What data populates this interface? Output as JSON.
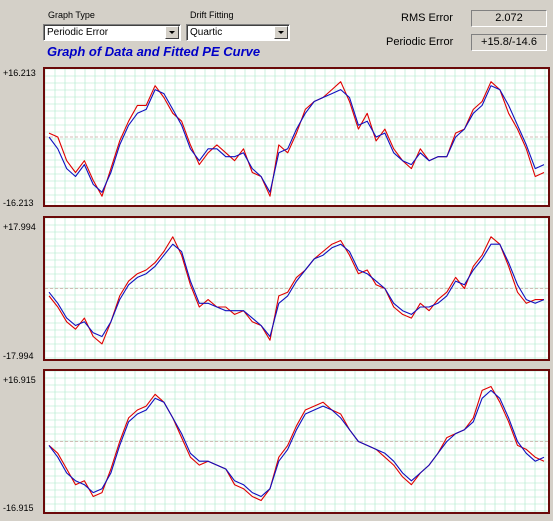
{
  "controls": {
    "graph_type_label": "Graph Type",
    "graph_type_value": "Periodic Error",
    "drift_fitting_label": "Drift Fitting",
    "drift_fitting_value": "Quartic"
  },
  "title": "Graph of Data and Fitted PE Curve",
  "stats": {
    "rms_error_label": "RMS Error",
    "rms_error_value": "2.072",
    "periodic_error_label": "Periodic Error",
    "periodic_error_value": "+15.8/-14.6"
  },
  "colors": {
    "data_series": "#e00000",
    "fit_series": "#1010c0",
    "frame": "#6b0a0a",
    "grid": "#a8e8c8"
  },
  "chart_data": [
    {
      "type": "line",
      "ylim": [
        -16.213,
        16.213
      ],
      "ytick_top": "+16.213",
      "ytick_bottom": "-16.213",
      "grid": true,
      "series": [
        {
          "values": [
            1,
            0,
            -6,
            -9,
            -6,
            -11,
            -15,
            -8,
            -1,
            4,
            8,
            8,
            13,
            10,
            6,
            4,
            -2,
            -7,
            -4,
            -2,
            -4,
            -6,
            -3,
            -9,
            -10,
            -15,
            -2,
            -4,
            1,
            7,
            9,
            10,
            12,
            14,
            9,
            2,
            6,
            -1,
            2,
            -3,
            -6,
            -8,
            -3,
            -6,
            -5,
            -5,
            1,
            2,
            7,
            9,
            14,
            12,
            6,
            2,
            -3,
            -10,
            -9
          ]
        },
        {
          "values": [
            0,
            -3,
            -8,
            -10,
            -7,
            -12,
            -14,
            -9,
            -2,
            3,
            6,
            7,
            12,
            11,
            7,
            3,
            -3,
            -6,
            -3,
            -3,
            -5,
            -5,
            -4,
            -8,
            -10,
            -14,
            -4,
            -3,
            2,
            6,
            9,
            10,
            11,
            12,
            10,
            3,
            4,
            0,
            1,
            -4,
            -6,
            -7,
            -4,
            -6,
            -5,
            -5,
            0,
            2,
            6,
            8,
            13,
            12,
            8,
            3,
            -2,
            -8,
            -7
          ]
        }
      ]
    },
    {
      "type": "line",
      "ylim": [
        -17.994,
        17.994
      ],
      "ytick_top": "+17.994",
      "ytick_bottom": "-17.994",
      "grid": true,
      "series": [
        {
          "values": [
            -2,
            -5,
            -9,
            -11,
            -8,
            -13,
            -15,
            -9,
            -2,
            2,
            4,
            5,
            7,
            10,
            14,
            9,
            1,
            -5,
            -3,
            -5,
            -5,
            -7,
            -6,
            -9,
            -10,
            -14,
            -2,
            -1,
            3,
            5,
            8,
            10,
            12,
            13,
            9,
            4,
            5,
            1,
            0,
            -5,
            -7,
            -8,
            -4,
            -6,
            -3,
            -1,
            3,
            0,
            6,
            9,
            14,
            12,
            6,
            -1,
            -4,
            -3,
            -3
          ]
        },
        {
          "values": [
            -1,
            -4,
            -8,
            -10,
            -9,
            -12,
            -13,
            -9,
            -3,
            1,
            3,
            4,
            6,
            9,
            12,
            10,
            2,
            -4,
            -4,
            -5,
            -6,
            -6,
            -6,
            -8,
            -10,
            -13,
            -4,
            -2,
            2,
            5,
            8,
            9,
            11,
            12,
            10,
            5,
            4,
            2,
            0,
            -4,
            -6,
            -7,
            -5,
            -5,
            -4,
            -2,
            2,
            1,
            5,
            8,
            12,
            12,
            7,
            1,
            -3,
            -4,
            -3
          ]
        }
      ]
    },
    {
      "type": "line",
      "ylim": [
        -16.915,
        16.915
      ],
      "ytick_top": "+16.915",
      "ytick_bottom": "-16.915",
      "grid": true,
      "series": [
        {
          "values": [
            -1,
            -3,
            -7,
            -11,
            -10,
            -14,
            -13,
            -7,
            0,
            6,
            8,
            9,
            12,
            10,
            6,
            1,
            -4,
            -6,
            -5,
            -6,
            -7,
            -11,
            -12,
            -14,
            -15,
            -12,
            -4,
            -1,
            4,
            8,
            9,
            10,
            8,
            7,
            3,
            0,
            -1,
            -2,
            -4,
            -6,
            -9,
            -11,
            -8,
            -6,
            -3,
            1,
            2,
            3,
            6,
            13,
            14,
            10,
            5,
            -1,
            -2,
            -4,
            -5
          ]
        },
        {
          "values": [
            -1,
            -4,
            -8,
            -10,
            -11,
            -13,
            -12,
            -8,
            -1,
            5,
            7,
            8,
            11,
            10,
            6,
            2,
            -3,
            -5,
            -5,
            -6,
            -7,
            -10,
            -11,
            -13,
            -14,
            -12,
            -5,
            -2,
            3,
            7,
            8,
            9,
            8,
            6,
            3,
            0,
            -1,
            -2,
            -3,
            -5,
            -8,
            -10,
            -8,
            -6,
            -3,
            0,
            2,
            3,
            5,
            11,
            13,
            11,
            6,
            0,
            -3,
            -5,
            -4
          ]
        }
      ]
    }
  ]
}
